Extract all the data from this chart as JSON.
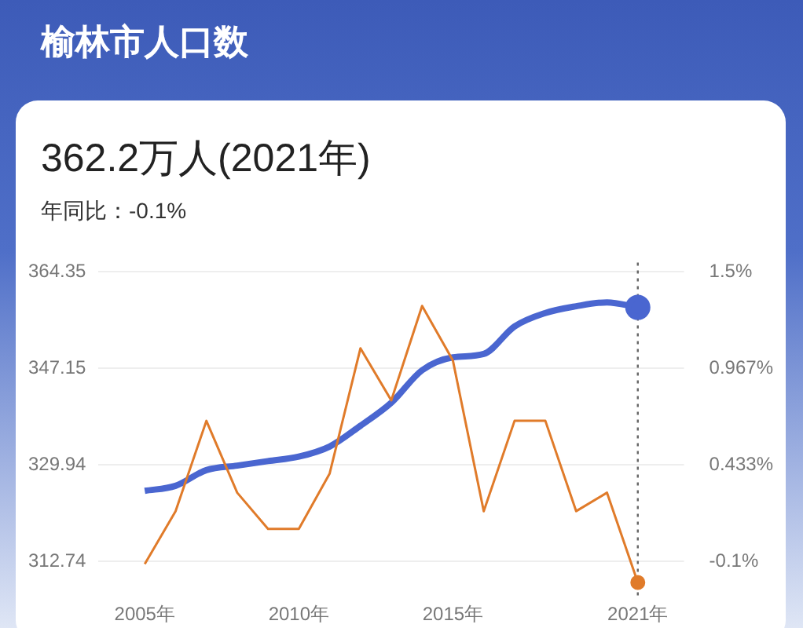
{
  "chart_data": {
    "type": "line",
    "title": "榆林市人口数",
    "subtitle": "362.2万人(2021年)",
    "annotations": [
      "年同比：-0.1%"
    ],
    "x": [
      2005,
      2006,
      2007,
      2008,
      2009,
      2010,
      2011,
      2012,
      2013,
      2014,
      2015,
      2016,
      2017,
      2018,
      2019,
      2020,
      2021
    ],
    "series": [
      {
        "color": "#4a66d0",
        "values": [
          325.3,
          326.2,
          329.0,
          329.8,
          330.6,
          331.4,
          333.2,
          336.9,
          341.0,
          346.8,
          349.1,
          349.7,
          354.6,
          357.0,
          358.2,
          358.9,
          358.0
        ]
      },
      {
        "color": "#e07b2a",
        "axis": "y2",
        "values": [
          -0.115,
          0.177,
          0.676,
          0.279,
          0.079,
          0.079,
          0.385,
          1.077,
          0.789,
          1.311,
          1.009,
          0.177,
          0.676,
          0.676,
          0.177,
          0.279,
          -0.217
        ]
      }
    ],
    "xlim": [
      2003.5,
      2022.5
    ],
    "xticks": [
      {
        "value": 2005,
        "label": "2005年"
      },
      {
        "value": 2010,
        "label": "2010年"
      },
      {
        "value": 2015,
        "label": "2015年"
      },
      {
        "value": 2021,
        "label": "2021年"
      }
    ],
    "ylim": [
      306,
      366
    ],
    "yticks": [
      312.74,
      329.94,
      347.15,
      364.35
    ],
    "y2lim": [
      -0.309,
      1.551
    ],
    "y2ticks": [
      {
        "value": -0.1,
        "label": "-0.1%"
      },
      {
        "value": 0.433,
        "label": "0.433%"
      },
      {
        "value": 0.967,
        "label": "0.967%"
      },
      {
        "value": 1.5,
        "label": "1.5%"
      }
    ],
    "ref_lines": [
      {
        "axis": "x",
        "value": 2021,
        "color": "#666666",
        "line_style": "dotted"
      }
    ],
    "grid": "y",
    "legend": false,
    "marker": "none",
    "line_style": "solid"
  }
}
